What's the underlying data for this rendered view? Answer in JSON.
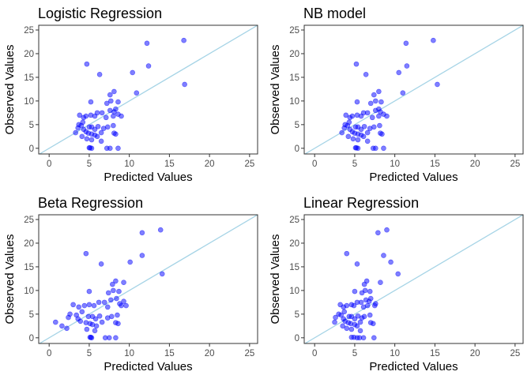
{
  "colors": {
    "points": "#0000ff",
    "reference_line": "#a6d4e6",
    "frame": "#333333",
    "ticks": "#4d4d4d"
  },
  "chart_data": [
    {
      "type": "scatter",
      "title": "Logistic Regression",
      "xlabel": "Predicted Values",
      "ylabel": "Observed Values",
      "xlim": [
        -1.3,
        26
      ],
      "ylim": [
        -1.2,
        26
      ],
      "xticks": [
        0,
        5,
        10,
        15,
        20,
        25
      ],
      "yticks": [
        0,
        5,
        10,
        15,
        20,
        25
      ],
      "reference_line": "y = x",
      "x": [
        4.7,
        6.3,
        7.6,
        8.1,
        7.7,
        7.2,
        8.3,
        8.6,
        8.6,
        3.8,
        4.3,
        4.6,
        5.2,
        5.7,
        6.0,
        6.6,
        7.1,
        7.6,
        8.1,
        8.0,
        9.0,
        3.7,
        4.0,
        4.2,
        3.6,
        4.3,
        5.0,
        5.3,
        5.7,
        6.1,
        6.8,
        7.3,
        8.0,
        3.3,
        4.6,
        4.9,
        5.3,
        5.7,
        6.0,
        6.5,
        8.1,
        8.3,
        4.1,
        4.7,
        5.3,
        6.5,
        5.0,
        5.1,
        5.3,
        5.2,
        7.2,
        7.6,
        8.6,
        10.4,
        10.9,
        12.2,
        16.8,
        12.4,
        16.9
      ],
      "y": [
        17.8,
        15.6,
        11.3,
        12.0,
        10.0,
        9.5,
        8.3,
        7.2,
        9.8,
        7.0,
        6.5,
        6.8,
        7.0,
        6.8,
        7.5,
        7.5,
        6.5,
        8.0,
        7.7,
        6.8,
        6.8,
        5.0,
        4.8,
        5.5,
        4.3,
        4.0,
        4.5,
        4.5,
        4.0,
        4.6,
        4.2,
        4.5,
        4.8,
        3.3,
        3.5,
        3.2,
        3.0,
        2.8,
        2.5,
        3.3,
        3.2,
        3.0,
        2.5,
        2.0,
        1.8,
        1.5,
        0.1,
        0.1,
        0.0,
        9.8,
        0.0,
        0.0,
        0.0,
        16.0,
        11.7,
        22.2,
        22.8,
        17.4,
        13.5
      ]
    },
    {
      "type": "scatter",
      "title": "NB model",
      "xlabel": "Predicted Values",
      "ylabel": "Observed Values",
      "xlim": [
        -1.3,
        26
      ],
      "ylim": [
        -1.2,
        26
      ],
      "xticks": [
        0,
        5,
        10,
        15,
        20,
        25
      ],
      "yticks": [
        0,
        5,
        10,
        15,
        20,
        25
      ],
      "reference_line": "y = x",
      "x": [
        5.2,
        6.4,
        7.4,
        8.0,
        7.6,
        7.0,
        8.0,
        8.6,
        8.3,
        3.9,
        4.4,
        4.7,
        5.3,
        5.8,
        6.1,
        6.6,
        7.2,
        7.6,
        8.2,
        8.0,
        9.0,
        3.8,
        4.1,
        4.3,
        3.7,
        4.4,
        5.1,
        5.4,
        5.8,
        6.2,
        6.9,
        7.4,
        8.1,
        3.4,
        4.7,
        5.0,
        5.4,
        5.8,
        6.1,
        6.6,
        8.2,
        8.4,
        4.2,
        4.8,
        5.4,
        6.6,
        5.1,
        5.2,
        5.4,
        5.3,
        7.3,
        7.6,
        8.6,
        10.5,
        11.0,
        11.4,
        14.8,
        11.5,
        15.3
      ],
      "y": [
        17.8,
        15.6,
        11.3,
        12.0,
        10.0,
        9.5,
        8.3,
        7.2,
        9.8,
        7.0,
        6.5,
        6.8,
        7.0,
        6.8,
        7.5,
        7.5,
        6.5,
        8.0,
        7.7,
        6.8,
        6.8,
        5.0,
        4.8,
        5.5,
        4.3,
        4.0,
        4.5,
        4.5,
        4.0,
        4.6,
        4.2,
        4.5,
        4.8,
        3.3,
        3.5,
        3.2,
        3.0,
        2.8,
        2.5,
        3.3,
        3.2,
        3.0,
        2.5,
        2.0,
        1.8,
        1.5,
        0.1,
        0.1,
        0.0,
        9.8,
        0.0,
        0.0,
        0.0,
        16.0,
        11.7,
        22.2,
        22.8,
        17.4,
        13.5
      ]
    },
    {
      "type": "scatter",
      "title": "Beta Regression",
      "xlabel": "Predicted Values",
      "ylabel": "Observed Values",
      "xlim": [
        -1.3,
        26
      ],
      "ylim": [
        -1.2,
        26
      ],
      "xticks": [
        0,
        5,
        10,
        15,
        20,
        25
      ],
      "yticks": [
        0,
        5,
        10,
        15,
        20,
        25
      ],
      "reference_line": "y = x",
      "x": [
        4.6,
        6.5,
        7.9,
        8.3,
        8.0,
        7.4,
        8.4,
        8.8,
        8.7,
        3.0,
        3.7,
        4.4,
        5.0,
        5.6,
        6.2,
        6.9,
        7.3,
        7.7,
        9.3,
        9.0,
        9.6,
        2.6,
        3.4,
        4.1,
        2.4,
        3.6,
        4.9,
        5.4,
        5.8,
        6.3,
        7.3,
        7.8,
        8.5,
        0.8,
        3.9,
        4.6,
        5.1,
        5.4,
        5.9,
        6.6,
        8.3,
        8.6,
        1.6,
        2.2,
        4.7,
        5.7,
        5.1,
        5.2,
        5.3,
        5.0,
        7.0,
        7.5,
        8.3,
        10.1,
        9.3,
        11.6,
        13.9,
        11.6,
        14.1
      ],
      "y": [
        17.8,
        15.6,
        11.3,
        12.0,
        10.0,
        9.5,
        8.3,
        7.2,
        9.8,
        7.0,
        6.5,
        6.8,
        7.0,
        6.8,
        7.5,
        7.5,
        6.5,
        8.0,
        7.7,
        6.8,
        6.8,
        5.0,
        4.8,
        5.5,
        4.3,
        4.0,
        4.5,
        4.5,
        4.0,
        4.6,
        4.2,
        4.5,
        4.8,
        3.3,
        3.5,
        3.2,
        3.0,
        2.8,
        2.5,
        3.3,
        3.2,
        3.0,
        2.5,
        2.0,
        1.8,
        1.5,
        0.1,
        0.1,
        0.0,
        9.8,
        0.0,
        0.0,
        0.0,
        16.0,
        11.7,
        22.2,
        22.8,
        17.4,
        13.5
      ]
    },
    {
      "type": "scatter",
      "title": "Linear Regression",
      "xlabel": "Predicted Values",
      "ylabel": "Observed Values",
      "xlim": [
        -1.3,
        26
      ],
      "ylim": [
        -1.2,
        26
      ],
      "xticks": [
        0,
        5,
        10,
        15,
        20,
        25
      ],
      "yticks": [
        0,
        5,
        10,
        15,
        20,
        25
      ],
      "reference_line": "y = x",
      "x": [
        4.0,
        5.3,
        6.2,
        6.5,
        6.3,
        5.9,
        7.0,
        7.6,
        6.9,
        3.2,
        3.6,
        4.0,
        4.6,
        4.9,
        5.3,
        5.8,
        6.1,
        6.4,
        6.8,
        6.6,
        7.5,
        3.0,
        3.3,
        3.7,
        2.6,
        3.6,
        4.3,
        4.6,
        5.0,
        5.4,
        5.9,
        6.2,
        6.9,
        2.5,
        3.8,
        4.2,
        4.5,
        5.0,
        5.3,
        5.7,
        7.0,
        7.3,
        3.5,
        4.0,
        4.6,
        5.7,
        4.6,
        4.9,
        5.3,
        5.0,
        5.6,
        6.1,
        7.4,
        9.5,
        8.2,
        7.9,
        9.0,
        8.6,
        10.4
      ],
      "y": [
        17.8,
        15.6,
        11.3,
        12.0,
        10.0,
        9.5,
        8.3,
        7.2,
        9.8,
        7.0,
        6.5,
        6.8,
        7.0,
        6.8,
        7.5,
        7.5,
        6.5,
        8.0,
        7.7,
        6.8,
        6.8,
        5.0,
        4.8,
        5.5,
        4.3,
        4.0,
        4.5,
        4.5,
        4.0,
        4.6,
        4.2,
        4.5,
        4.8,
        3.3,
        3.5,
        3.2,
        3.0,
        2.8,
        2.5,
        3.3,
        3.2,
        3.0,
        2.5,
        2.0,
        1.8,
        1.5,
        0.1,
        0.1,
        0.0,
        9.8,
        0.0,
        0.0,
        0.0,
        16.0,
        11.7,
        22.2,
        22.8,
        17.4,
        13.5
      ]
    }
  ]
}
